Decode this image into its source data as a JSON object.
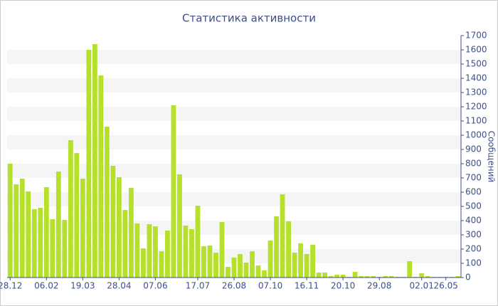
{
  "chart_data": {
    "type": "bar",
    "title": "Статистика активности",
    "y_label": "Сообщений",
    "categories": [
      "28.12",
      null,
      null,
      null,
      null,
      null,
      "06.02",
      null,
      null,
      null,
      null,
      null,
      "19.03",
      null,
      null,
      null,
      null,
      null,
      "28.04",
      null,
      null,
      null,
      null,
      null,
      "07.06",
      null,
      null,
      null,
      null,
      null,
      null,
      "17.07",
      null,
      null,
      null,
      null,
      null,
      "26.08",
      null,
      null,
      null,
      null,
      null,
      "07.10",
      null,
      null,
      null,
      null,
      null,
      "16.11",
      null,
      null,
      null,
      null,
      null,
      "20.10",
      null,
      null,
      null,
      null,
      null,
      "29.08",
      null,
      null,
      null,
      null,
      null,
      null,
      "02.01",
      null,
      null,
      null,
      "26.05",
      null,
      null
    ],
    "values": [
      800,
      655,
      695,
      605,
      480,
      490,
      635,
      410,
      745,
      405,
      965,
      875,
      695,
      1600,
      1640,
      1420,
      1060,
      785,
      705,
      475,
      630,
      380,
      205,
      375,
      360,
      185,
      330,
      1210,
      725,
      365,
      340,
      505,
      220,
      225,
      175,
      390,
      75,
      140,
      165,
      105,
      185,
      85,
      50,
      260,
      430,
      585,
      395,
      175,
      240,
      165,
      230,
      35,
      35,
      10,
      20,
      20,
      5,
      40,
      10,
      10,
      10,
      5,
      10,
      10,
      5,
      5,
      115,
      5,
      30,
      10,
      5,
      5,
      5,
      5,
      10
    ],
    "color": "#b5e02b",
    "ylim": [
      0,
      1700
    ],
    "yticks": [
      0,
      100,
      200,
      300,
      400,
      500,
      600,
      700,
      800,
      900,
      1000,
      1100,
      1200,
      1300,
      1400,
      1500,
      1600,
      1700
    ],
    "grid": true
  }
}
